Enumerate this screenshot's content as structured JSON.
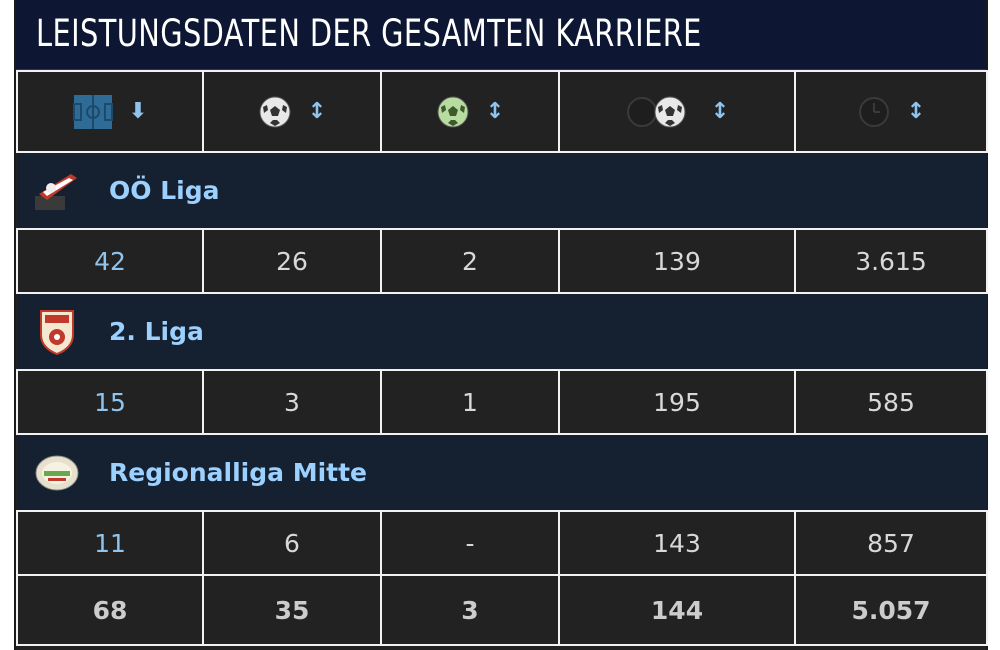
{
  "title": "LEISTUNGSDATEN DER GESAMTEN KARRIERE",
  "header": {
    "col1_sort": "⬇",
    "col2_sort": "↕",
    "col3_sort": "↕",
    "col4_sort": "↕",
    "col5_sort": "↕"
  },
  "competitions": [
    {
      "name": "OÖ Liga",
      "values": [
        "42",
        "26",
        "2",
        "139",
        "3.615"
      ]
    },
    {
      "name": "2. Liga",
      "values": [
        "15",
        "3",
        "1",
        "195",
        "585"
      ]
    },
    {
      "name": "Regionalliga Mitte",
      "values": [
        "11",
        "6",
        "-",
        "143",
        "857"
      ]
    }
  ],
  "totals": [
    "68",
    "35",
    "3",
    "144",
    "5.057"
  ],
  "colors": {
    "title_bg": "#0d1733",
    "table_bg": "#222222",
    "competition_bg": "#152130",
    "link_blue": "#9cd0ff",
    "icon_blue": "#2e6c97"
  },
  "icons": {
    "col1": "pitch-icon",
    "col2": "ball-icon",
    "col3": "green-ball-icon",
    "col4": "clock-ball-icon",
    "col5": "clock-icon"
  }
}
